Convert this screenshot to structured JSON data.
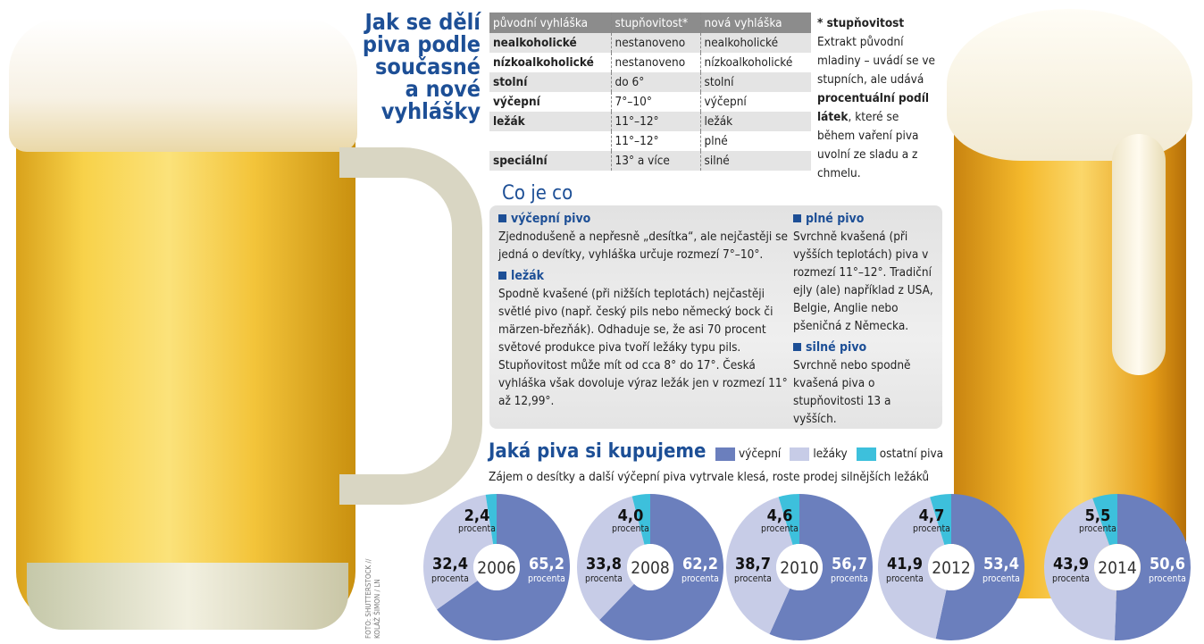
{
  "title": [
    "Jak se dělí",
    "piva podle",
    "současné",
    "a nové",
    "vyhlášky"
  ],
  "table": {
    "headers": [
      "původní vyhláška",
      "stupňovitost*",
      "nová vyhláška"
    ],
    "rows": [
      [
        "nealkoholické",
        "nestanoveno",
        "nealkoholické"
      ],
      [
        "nízkoalkoholické",
        "nestanoveno",
        "nízkoalkoholické"
      ],
      [
        "stolní",
        "do 6°",
        "stolní"
      ],
      [
        "výčepní",
        "7°–10°",
        "výčepní"
      ],
      [
        "ležák",
        "11°–12°",
        "ležák"
      ],
      [
        "",
        "11°–12°",
        "plné"
      ],
      [
        "speciální",
        "13° a více",
        "silné"
      ]
    ]
  },
  "note": {
    "heading": "* stupňovitost",
    "text1": "Extrakt původní mladiny – uvádí se ve stupních, ale udává ",
    "bold": "procentuální podíl látek",
    "text2": ", které se během vaření piva uvolní ze sladu a z chmelu."
  },
  "coje": {
    "title": "Co je co",
    "items": [
      {
        "heading": "výčepní pivo",
        "text": "Zjednodušeně a nepřesně „desítka“, ale nejčastěji se jedná o devítky, vyhláška určuje rozmezí 7°–10°."
      },
      {
        "heading": "ležák",
        "text": "Spodně kvašené (při nižších teplotách) nejčastěji světlé pivo (např. český pils nebo německý bock či märzen-březňák). Odhaduje se, že asi 70 procent světové produkce piva tvoří ležáky typu pils. Stupňovitost může mít od cca 8° do 17°. Česká vyhláška však dovoluje výraz ležák jen v rozmezí 11° až 12,99°."
      },
      {
        "heading": "plné pivo",
        "text": "Svrchně kvašená (při vyšších teplotách) piva v rozmezí 11°–12°. Tradiční ejly (ale) například z USA, Belgie, Anglie nebo pšeničná z Německa."
      },
      {
        "heading": "silné pivo",
        "text": "Svrchně nebo spodně kvašená piva o stupňovitosti 13 a vyšších."
      }
    ]
  },
  "credit": "FOTO: SHUTTERSTOCK // KOLÁŽ ŠIMON / LN",
  "chart_data": {
    "type": "pie",
    "title": "Jaká piva si kupujeme",
    "subtitle": "Zájem o desítky a další výčepní piva vytrvale klesá, roste prodej silnějších ležáků",
    "unit_label": "procenta",
    "categories": [
      "2006",
      "2008",
      "2010",
      "2012",
      "2014"
    ],
    "series": [
      {
        "name": "výčepní",
        "color": "#6b7fbd",
        "values": [
          65.2,
          62.2,
          56.7,
          53.4,
          50.6
        ]
      },
      {
        "name": "ležáky",
        "color": "#c7cce7",
        "values": [
          32.4,
          33.8,
          38.7,
          41.9,
          43.9
        ]
      },
      {
        "name": "ostatní piva",
        "color": "#3dc0dc",
        "values": [
          2.4,
          4.0,
          4.6,
          4.7,
          5.5
        ]
      }
    ]
  }
}
